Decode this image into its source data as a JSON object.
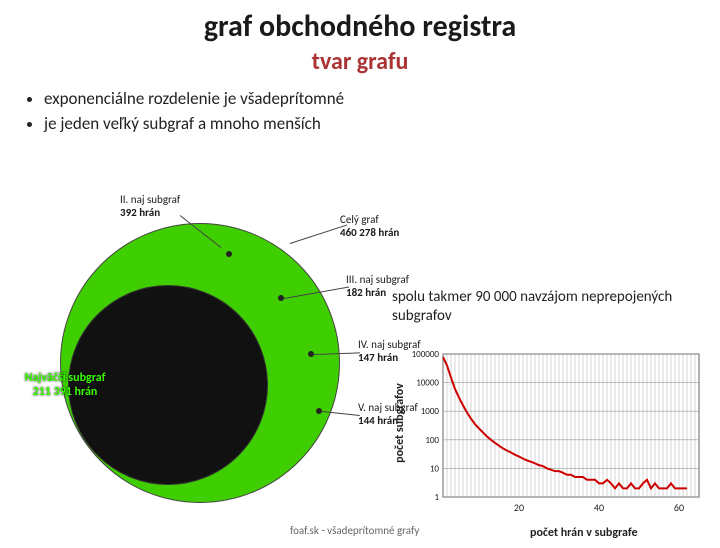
{
  "title": "graf obchodného registra",
  "subtitle": "tvar grafu",
  "bullets": [
    "exponenciálne rozdelenie je všadeprítomné",
    "je jeden veľký subgraf a mnoho menších"
  ],
  "venn": {
    "outer_color": "#3fce00",
    "inner_color": "#111111",
    "labels": {
      "celygraf": {
        "line1": "Celý graf",
        "line2": "460 278 hrán"
      },
      "sub2": {
        "line1": "II. naj subgraf",
        "line2": "392 hrán"
      },
      "sub3": {
        "line1": "III. naj subgraf",
        "line2": "182 hrán"
      },
      "sub4": {
        "line1": "IV. naj subgraf",
        "line2": "147 hrán"
      },
      "sub5": {
        "line1": "V. naj subgraf",
        "line2": "144 hrán"
      },
      "najv": {
        "line1": "Najväčší subgraf",
        "line2": "211 391 hrán"
      }
    }
  },
  "right_text": "spolu takmer 90 000 navzájom neprepojených subgrafov",
  "chart": {
    "type": "line",
    "xlabel": "počet hrán v subgrafe",
    "ylabel": "počet subgrafov",
    "xlim": [
      1,
      65
    ],
    "ylim_log": [
      1,
      100000
    ],
    "xtick_labels": [
      "20",
      "40",
      "60"
    ],
    "xtick_pos": [
      20,
      40,
      60
    ],
    "ytick_labels": [
      "1",
      "10",
      "100",
      "1000",
      "10000",
      "100000"
    ],
    "ytick_pos": [
      1,
      10,
      100,
      1000,
      10000,
      100000
    ],
    "line_color": "#cc0000",
    "line_width": 2,
    "grid_color": "#999999",
    "background_color": "#ffffff",
    "vgrid_step": 1,
    "data": [
      [
        1,
        78000
      ],
      [
        2,
        40000
      ],
      [
        3,
        15000
      ],
      [
        4,
        6000
      ],
      [
        5,
        3000
      ],
      [
        6,
        1600
      ],
      [
        7,
        900
      ],
      [
        8,
        550
      ],
      [
        9,
        350
      ],
      [
        10,
        250
      ],
      [
        11,
        180
      ],
      [
        12,
        130
      ],
      [
        13,
        100
      ],
      [
        14,
        78
      ],
      [
        15,
        62
      ],
      [
        16,
        50
      ],
      [
        17,
        42
      ],
      [
        18,
        36
      ],
      [
        19,
        30
      ],
      [
        20,
        26
      ],
      [
        21,
        22
      ],
      [
        22,
        19
      ],
      [
        23,
        17
      ],
      [
        24,
        15
      ],
      [
        25,
        13
      ],
      [
        26,
        12
      ],
      [
        27,
        10
      ],
      [
        28,
        9
      ],
      [
        29,
        8
      ],
      [
        30,
        8
      ],
      [
        31,
        7
      ],
      [
        32,
        6
      ],
      [
        33,
        6
      ],
      [
        34,
        5
      ],
      [
        35,
        5
      ],
      [
        36,
        5
      ],
      [
        37,
        4
      ],
      [
        38,
        4
      ],
      [
        39,
        4
      ],
      [
        40,
        3
      ],
      [
        41,
        3
      ],
      [
        42,
        4
      ],
      [
        43,
        3
      ],
      [
        44,
        2
      ],
      [
        45,
        3
      ],
      [
        46,
        2
      ],
      [
        47,
        2
      ],
      [
        48,
        3
      ],
      [
        49,
        2
      ],
      [
        50,
        2
      ],
      [
        51,
        3
      ],
      [
        52,
        4
      ],
      [
        53,
        2
      ],
      [
        54,
        3
      ],
      [
        55,
        2
      ],
      [
        56,
        2
      ],
      [
        57,
        2
      ],
      [
        58,
        3
      ],
      [
        59,
        2
      ],
      [
        60,
        2
      ],
      [
        61,
        2
      ],
      [
        62,
        2
      ]
    ]
  },
  "footer": "foaf.sk - všadeprítomné grafy"
}
